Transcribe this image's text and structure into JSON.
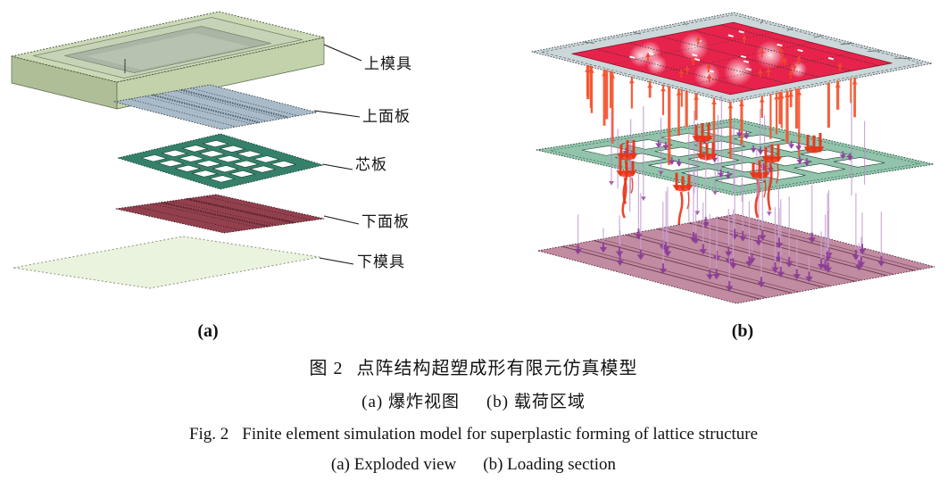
{
  "figure": {
    "panel_a": {
      "tag": "(a)",
      "layer_labels": [
        "上模具",
        "上面板",
        "芯板",
        "下面板",
        "下模具"
      ]
    },
    "panel_b": {
      "tag": "(b)"
    },
    "caption": {
      "zh_fig_label": "图 2",
      "zh_title": "点阵结构超塑成形有限元仿真模型",
      "zh_sub_a": "(a) 爆炸视图",
      "zh_sub_b": "(b) 载荷区域",
      "en_fig_label": "Fig. 2",
      "en_title": "Finite element simulation model for superplastic forming of lattice structure",
      "en_sub_a": "(a) Exploded view",
      "en_sub_b": "(b) Loading section"
    },
    "colors": {
      "upper_die": "#ccd9b6",
      "upper_face_sheet": "#a9bbc9",
      "core_sheet": "#35806a",
      "lower_face_sheet": "#92404e",
      "lower_die": "#eaf3dd",
      "top_plate": "#ccd7da",
      "pressure_region": "#e8234b",
      "pressure_arrows": "#f4512c",
      "core_plate": "#92c3ab",
      "core_load_arrows": "#e93418",
      "bottom_plate": "#c18ba1",
      "lower_load_arrows": "#8b3d96"
    }
  }
}
